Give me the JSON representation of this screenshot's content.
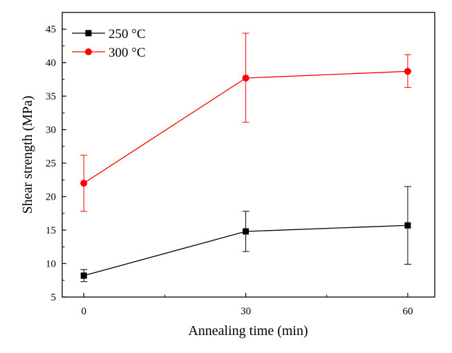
{
  "chart_data": {
    "type": "line",
    "title": "",
    "xlabel": "Annealing time (min)",
    "ylabel": "Shear strength (MPa)",
    "x": [
      0,
      30,
      60
    ],
    "x_tick_labels": [
      "0",
      "30",
      "60"
    ],
    "xlim": [
      -4,
      65
    ],
    "ylim": [
      5,
      47.5
    ],
    "y_ticks": [
      5,
      10,
      15,
      20,
      25,
      30,
      35,
      40,
      45
    ],
    "y_tick_labels": [
      "5",
      "10",
      "15",
      "20",
      "25",
      "30",
      "35",
      "40",
      "45"
    ],
    "grid": false,
    "legend_position": "top-left",
    "series": [
      {
        "name": "250 °C",
        "color": "#000000",
        "marker": "square",
        "values": [
          8.2,
          14.8,
          15.7
        ],
        "error_low": [
          7.3,
          11.8,
          9.9
        ],
        "error_high": [
          9.1,
          17.8,
          21.5
        ]
      },
      {
        "name": "300 °C",
        "color": "#ff0000",
        "marker": "circle",
        "values": [
          22.0,
          37.7,
          38.7
        ],
        "error_low": [
          17.8,
          31.1,
          36.3
        ],
        "error_high": [
          26.2,
          44.4,
          41.2
        ]
      }
    ]
  }
}
